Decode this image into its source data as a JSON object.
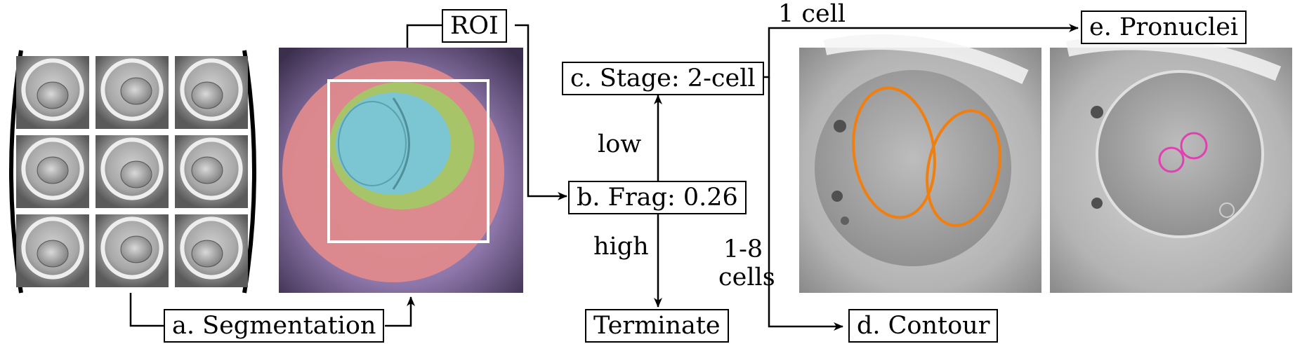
{
  "figure": {
    "nodes": {
      "segmentation": "a. Segmentation",
      "roi": "ROI",
      "frag": "b. Frag: 0.26",
      "stage": "c. Stage: 2-cell",
      "terminate": "Terminate",
      "contour": "d. Contour",
      "pronuclei": "e. Pronuclei"
    },
    "edge_labels": {
      "low": "low",
      "high": "high",
      "one_cell": "1 cell",
      "one_to_eight_line1": "1-8",
      "one_to_eight_line2": "cells"
    },
    "segmentation_colors": {
      "background": "#9d83b6",
      "zona_halo": "#e08a8a",
      "zona": "#a9c56a",
      "cytoplasm": "#79c4d4",
      "roi_box": "#ffffff"
    },
    "contour_colors": {
      "cell_outline": "#f07f10",
      "pronuclei_outline": "#e040b0"
    }
  }
}
